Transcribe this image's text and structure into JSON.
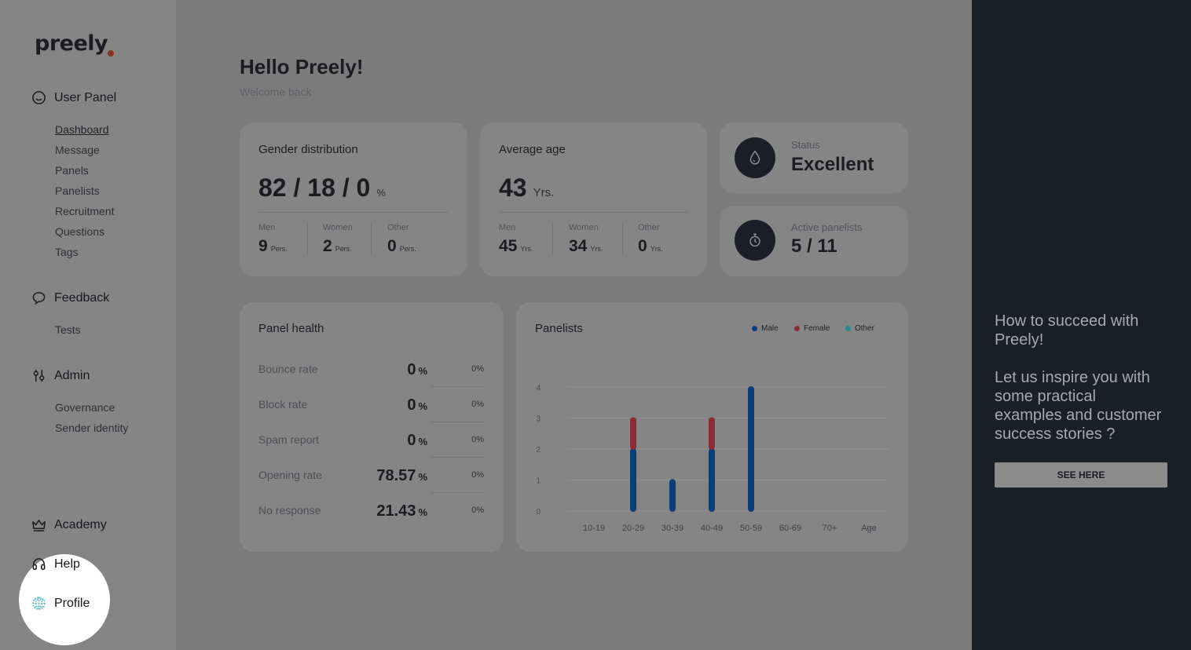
{
  "app": {
    "logo": "preely"
  },
  "sidebar": {
    "user_panel": {
      "title": "User Panel",
      "items": [
        "Dashboard",
        "Message",
        "Panels",
        "Panelists",
        "Recruitment",
        "Questions",
        "Tags"
      ]
    },
    "feedback": {
      "title": "Feedback",
      "items": [
        "Tests"
      ]
    },
    "admin": {
      "title": "Admin",
      "items": [
        "Governance",
        "Sender identity"
      ]
    },
    "academy": "Academy",
    "help": "Help",
    "profile": "Profile"
  },
  "header": {
    "title": "Hello Preely!",
    "subtitle": "Welcome back"
  },
  "gender_card": {
    "title": "Gender distribution",
    "value": "82 / 18 / 0",
    "unit": "%",
    "breakdown": [
      {
        "label": "Men",
        "value": "9",
        "unit": "Pers."
      },
      {
        "label": "Women",
        "value": "2",
        "unit": "Pers."
      },
      {
        "label": "Other",
        "value": "0",
        "unit": "Pers."
      }
    ]
  },
  "age_card": {
    "title": "Average age",
    "value": "43",
    "unit": "Yrs.",
    "breakdown": [
      {
        "label": "Men",
        "value": "45",
        "unit": "Yrs."
      },
      {
        "label": "Women",
        "value": "34",
        "unit": "Yrs."
      },
      {
        "label": "Other",
        "value": "0",
        "unit": "Yrs."
      }
    ]
  },
  "status_card": {
    "label": "Status",
    "value": "Excellent",
    "icon": "drop-icon"
  },
  "active_card": {
    "label": "Active panelists",
    "value": "5 / 11",
    "icon": "stopwatch-icon"
  },
  "panel_health": {
    "title": "Panel health",
    "rows": [
      {
        "label": "Bounce rate",
        "value": "0",
        "unit": "%",
        "change": "0%"
      },
      {
        "label": "Block rate",
        "value": "0",
        "unit": "%",
        "change": "0%"
      },
      {
        "label": "Spam report",
        "value": "0",
        "unit": "%",
        "change": "0%"
      },
      {
        "label": "Opening rate",
        "value": "78.57",
        "unit": "%",
        "change": "0%"
      },
      {
        "label": "No response",
        "value": "21.43",
        "unit": "%",
        "change": "0%"
      }
    ]
  },
  "panelists_card": {
    "title": "Panelists",
    "legend": [
      {
        "name": "Male",
        "color": "#0a3d7a"
      },
      {
        "name": "Female",
        "color": "#8a2e35"
      },
      {
        "name": "Other",
        "color": "#2a8a93"
      }
    ]
  },
  "chart_data": {
    "type": "bar",
    "stacked": true,
    "categories": [
      "10-19",
      "20-29",
      "30-39",
      "40-49",
      "50-59",
      "60-69",
      "70+"
    ],
    "x_end_label": "Age",
    "series": [
      {
        "name": "Male",
        "color": "#0a3d7a",
        "values": [
          0,
          2,
          1,
          2,
          4,
          0,
          0
        ]
      },
      {
        "name": "Female",
        "color": "#8a2e35",
        "values": [
          0,
          1,
          0,
          1,
          0,
          0,
          0
        ]
      },
      {
        "name": "Other",
        "color": "#2a8a93",
        "values": [
          0,
          0,
          0,
          0,
          0,
          0,
          0
        ]
      }
    ],
    "yticks": [
      0,
      1,
      2,
      3,
      4
    ],
    "ylim": [
      0,
      4
    ],
    "grid": true,
    "legend_position": "top-right"
  },
  "promo": {
    "heading": "How to succeed with Preely!",
    "body": "Let us inspire you with some practical examples and customer success stories ?",
    "button": "SEE HERE"
  }
}
